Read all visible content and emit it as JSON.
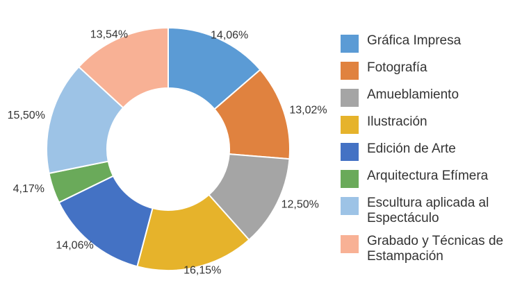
{
  "chart_data": {
    "type": "donut",
    "categories": [
      "Gráfica Impresa",
      "Fotografía",
      "Amueblamiento",
      "Ilustración",
      "Edición de Arte",
      "Arquitectura Efímera",
      "Escultura aplicada al Espectáculo",
      "Grabado y Técnicas de Estampación"
    ],
    "values": [
      14.06,
      13.02,
      12.5,
      16.15,
      14.06,
      4.17,
      15.5,
      13.54
    ],
    "value_labels": [
      "14,06%",
      "13,02%",
      "12,50%",
      "16,15%",
      "14,06%",
      "4,17%",
      "15,50%",
      "13,54%"
    ],
    "colors": [
      "#5b9bd5",
      "#e0823f",
      "#a5a5a5",
      "#e6b32b",
      "#4472c4",
      "#6aaa5a",
      "#9dc3e6",
      "#f8b195"
    ],
    "legend": "right"
  }
}
